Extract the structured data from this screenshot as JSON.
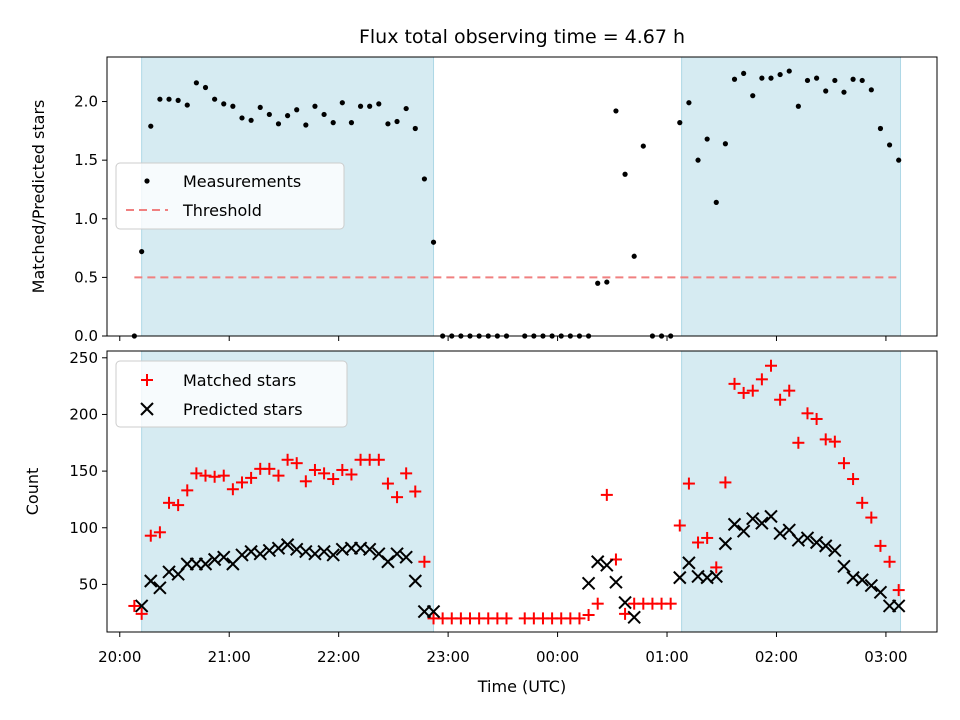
{
  "chart_data": [
    {
      "type": "scatter",
      "title": "Flux total observing time = 4.67 h",
      "xlabel": "",
      "ylabel": "Matched/Predicted stars",
      "ylim": [
        0,
        2.38
      ],
      "yticks": [
        "0.0",
        "0.5",
        "1.0",
        "1.5",
        "2.0"
      ],
      "ytick_values": [
        0,
        0.5,
        1.0,
        1.5,
        2.0
      ],
      "legend": {
        "placement": "center-left",
        "entries": [
          "Measurements",
          "Threshold"
        ]
      },
      "threshold": {
        "name": "Threshold",
        "value": 0.5,
        "color": "#f08080"
      },
      "shaded_intervals": [
        [
          "20:12",
          "22:52"
        ],
        [
          "01:08",
          "03:08"
        ]
      ],
      "series": [
        {
          "name": "Measurements",
          "color": "#000000",
          "x": [
            "20:08",
            "20:12",
            "20:17",
            "20:22",
            "20:27",
            "20:32",
            "20:37",
            "20:42",
            "20:47",
            "20:52",
            "20:57",
            "21:02",
            "21:07",
            "21:12",
            "21:17",
            "21:22",
            "21:27",
            "21:32",
            "21:37",
            "21:42",
            "21:47",
            "21:52",
            "21:57",
            "22:02",
            "22:07",
            "22:12",
            "22:17",
            "22:22",
            "22:27",
            "22:32",
            "22:37",
            "22:42",
            "22:47",
            "22:52",
            "22:57",
            "23:02",
            "23:07",
            "23:12",
            "23:17",
            "23:22",
            "23:27",
            "23:32",
            "23:42",
            "23:47",
            "23:52",
            "23:57",
            "00:02",
            "00:07",
            "00:12",
            "00:17",
            "00:22",
            "00:27",
            "00:32",
            "00:37",
            "00:42",
            "00:47",
            "00:52",
            "00:57",
            "01:02",
            "01:07",
            "01:12",
            "01:17",
            "01:22",
            "01:27",
            "01:32",
            "01:37",
            "01:42",
            "01:47",
            "01:52",
            "01:57",
            "02:02",
            "02:07",
            "02:12",
            "02:17",
            "02:22",
            "02:27",
            "02:32",
            "02:37",
            "02:42",
            "02:47",
            "02:52",
            "02:57",
            "03:02",
            "03:07"
          ],
          "y": [
            0.0,
            0.72,
            1.79,
            2.02,
            2.02,
            2.01,
            1.97,
            2.16,
            2.12,
            2.02,
            1.98,
            1.96,
            1.86,
            1.84,
            1.95,
            1.89,
            1.81,
            1.88,
            1.93,
            1.8,
            1.96,
            1.89,
            1.82,
            1.99,
            1.82,
            1.96,
            1.96,
            1.98,
            1.81,
            1.83,
            1.94,
            1.77,
            1.34,
            0.8,
            0.0,
            0.0,
            0.0,
            0.0,
            0.0,
            0.0,
            0.0,
            0.0,
            0.0,
            0.0,
            0.0,
            0.0,
            0.0,
            0.0,
            0.0,
            0.0,
            0.45,
            0.46,
            1.92,
            1.38,
            0.68,
            1.62,
            0.0,
            0.0,
            0.0,
            1.82,
            1.99,
            1.5,
            1.68,
            1.14,
            1.64,
            2.19,
            2.24,
            2.05,
            2.2,
            2.2,
            2.23,
            2.26,
            1.96,
            2.18,
            2.2,
            2.09,
            2.18,
            2.08,
            2.19,
            2.18,
            2.1,
            1.77,
            1.63,
            1.5
          ]
        }
      ]
    },
    {
      "type": "scatter",
      "title": "",
      "xlabel": "Time (UTC)",
      "ylabel": "Count",
      "ylim": [
        8,
        256
      ],
      "yticks": [
        "50",
        "100",
        "150",
        "200",
        "250"
      ],
      "ytick_values": [
        50,
        100,
        150,
        200,
        250
      ],
      "xticks": [
        "20:00",
        "21:00",
        "22:00",
        "23:00",
        "00:00",
        "01:00",
        "02:00",
        "03:00"
      ],
      "xtick_values": [
        "20:00",
        "21:00",
        "22:00",
        "23:00",
        "00:00",
        "01:00",
        "02:00",
        "03:00"
      ],
      "xlim": [
        "19:53",
        "03:28"
      ],
      "legend": {
        "placement": "top-left",
        "entries": [
          "Matched stars",
          "Predicted stars"
        ]
      },
      "shaded_intervals": [
        [
          "20:12",
          "22:52"
        ],
        [
          "01:08",
          "03:08"
        ]
      ],
      "series": [
        {
          "name": "Matched stars",
          "color": "#ff0000",
          "marker": "plus",
          "x": [
            "20:08",
            "20:12",
            "20:17",
            "20:22",
            "20:27",
            "20:32",
            "20:37",
            "20:42",
            "20:47",
            "20:52",
            "20:57",
            "21:02",
            "21:07",
            "21:12",
            "21:17",
            "21:22",
            "21:27",
            "21:32",
            "21:37",
            "21:42",
            "21:47",
            "21:52",
            "21:57",
            "22:02",
            "22:07",
            "22:12",
            "22:17",
            "22:22",
            "22:27",
            "22:32",
            "22:37",
            "22:42",
            "22:47",
            "22:52",
            "22:57",
            "23:02",
            "23:07",
            "23:12",
            "23:17",
            "23:22",
            "23:27",
            "23:32",
            "23:42",
            "23:47",
            "23:52",
            "23:57",
            "00:02",
            "00:07",
            "00:12",
            "00:17",
            "00:22",
            "00:27",
            "00:32",
            "00:37",
            "00:42",
            "00:47",
            "00:52",
            "00:57",
            "01:02",
            "01:07",
            "01:12",
            "01:17",
            "01:22",
            "01:27",
            "01:32",
            "01:37",
            "01:42",
            "01:47",
            "01:52",
            "01:57",
            "02:02",
            "02:07",
            "02:12",
            "02:17",
            "02:22",
            "02:27",
            "02:32",
            "02:37",
            "02:42",
            "02:47",
            "02:52",
            "02:57",
            "03:02",
            "03:07"
          ],
          "y": [
            31,
            24,
            93,
            96,
            122,
            120,
            133,
            148,
            146,
            145,
            146,
            134,
            140,
            144,
            152,
            152,
            146,
            160,
            157,
            141,
            151,
            148,
            143,
            151,
            147,
            160,
            160,
            160,
            139,
            127,
            148,
            132,
            70,
            20,
            20,
            20,
            20,
            20,
            20,
            20,
            20,
            20,
            20,
            20,
            20,
            20,
            20,
            20,
            20,
            23,
            33,
            129,
            72,
            24,
            33,
            33,
            33,
            33,
            33,
            102,
            139,
            87,
            91,
            65,
            140,
            227,
            219,
            221,
            231,
            243,
            213,
            221,
            175,
            201,
            196,
            178,
            176,
            157,
            143,
            122,
            109,
            84,
            70,
            45
          ]
        },
        {
          "name": "Predicted stars",
          "color": "#000000",
          "marker": "x",
          "x": [
            "20:12",
            "20:17",
            "20:22",
            "20:27",
            "20:32",
            "20:37",
            "20:42",
            "20:47",
            "20:52",
            "20:57",
            "21:02",
            "21:07",
            "21:12",
            "21:17",
            "21:22",
            "21:27",
            "21:32",
            "21:37",
            "21:42",
            "21:47",
            "21:52",
            "21:57",
            "22:02",
            "22:07",
            "22:12",
            "22:17",
            "22:22",
            "22:27",
            "22:32",
            "22:37",
            "22:42",
            "22:47",
            "22:52",
            "00:17",
            "00:22",
            "00:27",
            "00:32",
            "00:37",
            "00:42",
            "01:07",
            "01:12",
            "01:17",
            "01:22",
            "01:27",
            "01:32",
            "01:37",
            "01:42",
            "01:47",
            "01:52",
            "01:57",
            "02:02",
            "02:07",
            "02:12",
            "02:17",
            "02:22",
            "02:27",
            "02:32",
            "02:37",
            "02:42",
            "02:47",
            "02:52",
            "02:57",
            "03:02",
            "03:07"
          ],
          "y": [
            31,
            53,
            47,
            61,
            59,
            68,
            68,
            68,
            72,
            74,
            68,
            76,
            79,
            77,
            80,
            82,
            85,
            81,
            79,
            77,
            79,
            76,
            81,
            82,
            82,
            81,
            77,
            70,
            77,
            74,
            53,
            26,
            26,
            51,
            70,
            67,
            52,
            34,
            21,
            56,
            69,
            57,
            56,
            57,
            86,
            103,
            97,
            108,
            104,
            110,
            95,
            98,
            89,
            91,
            87,
            84,
            80,
            66,
            56,
            54,
            49,
            43,
            31,
            31
          ]
        }
      ]
    }
  ]
}
